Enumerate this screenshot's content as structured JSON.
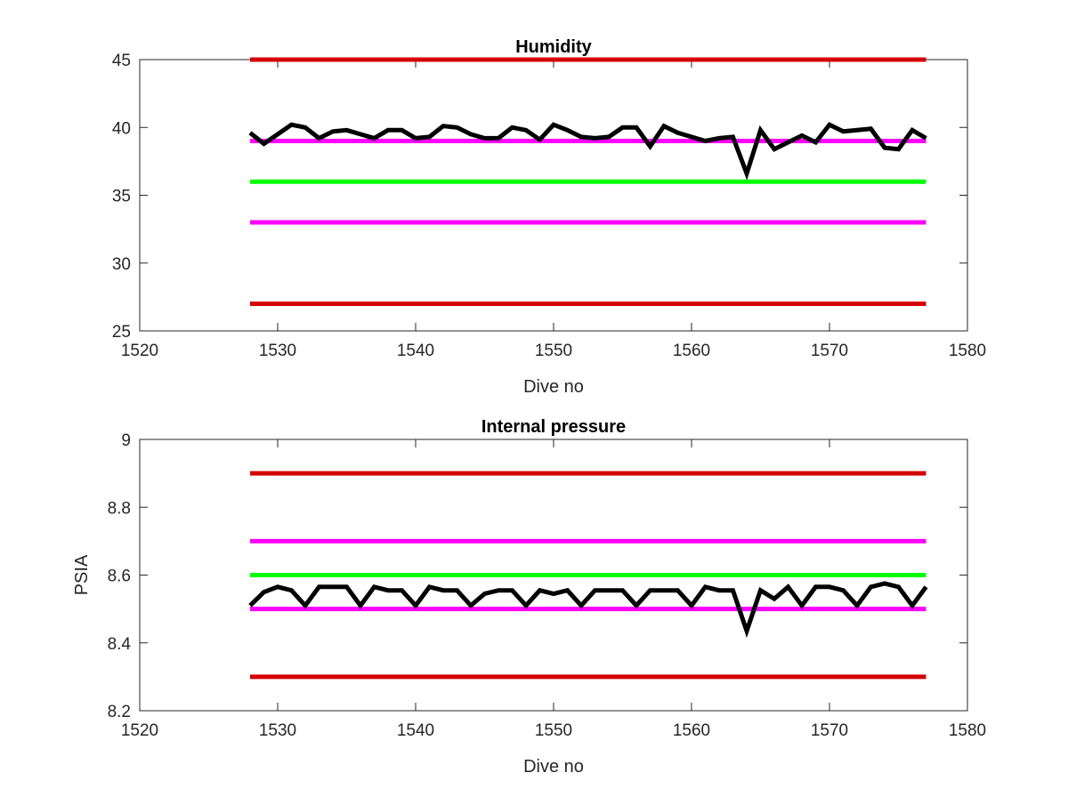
{
  "chart_data": [
    {
      "type": "line",
      "title": "Humidity",
      "xlabel": "Dive no",
      "ylabel": "",
      "xlim": [
        1520,
        1580
      ],
      "ylim": [
        25,
        45
      ],
      "xticks": [
        "1520",
        "1530",
        "1540",
        "1550",
        "1560",
        "1570",
        "1580"
      ],
      "yticks": [
        "25",
        "30",
        "35",
        "40",
        "45"
      ],
      "grid": false,
      "box": true,
      "reference_lines": [
        {
          "y": 45,
          "x": [
            1528,
            1577
          ],
          "color": "#d40000"
        },
        {
          "y": 39,
          "x": [
            1528,
            1577
          ],
          "color": "#ff00ff"
        },
        {
          "y": 36,
          "x": [
            1528,
            1577
          ],
          "color": "#00ff00"
        },
        {
          "y": 33,
          "x": [
            1528,
            1577
          ],
          "color": "#ff00ff"
        },
        {
          "y": 27,
          "x": [
            1528,
            1577
          ],
          "color": "#d40000"
        }
      ],
      "series": [
        {
          "color": "#000000",
          "x": [
            1528,
            1529,
            1530,
            1531,
            1532,
            1533,
            1534,
            1535,
            1536,
            1537,
            1538,
            1539,
            1540,
            1541,
            1542,
            1543,
            1544,
            1545,
            1546,
            1547,
            1548,
            1549,
            1550,
            1551,
            1552,
            1553,
            1554,
            1555,
            1556,
            1557,
            1558,
            1559,
            1560,
            1561,
            1562,
            1563,
            1564,
            1565,
            1566,
            1567,
            1568,
            1569,
            1570,
            1571,
            1572,
            1573,
            1574,
            1575,
            1576,
            1577
          ],
          "y": [
            39.6,
            38.8,
            39.5,
            40.2,
            40.0,
            39.2,
            39.7,
            39.8,
            39.5,
            39.2,
            39.8,
            39.8,
            39.2,
            39.3,
            40.1,
            40.0,
            39.5,
            39.2,
            39.2,
            40.0,
            39.8,
            39.1,
            40.2,
            39.8,
            39.3,
            39.2,
            39.3,
            40.0,
            40.0,
            38.6,
            40.1,
            39.6,
            39.3,
            39.0,
            39.2,
            39.3,
            36.6,
            39.8,
            38.4,
            38.9,
            39.4,
            38.9,
            40.2,
            39.7,
            39.8,
            39.9,
            38.5,
            38.4,
            39.8,
            39.2
          ]
        }
      ]
    },
    {
      "type": "line",
      "title": "Internal pressure",
      "xlabel": "Dive no",
      "ylabel": "PSIA",
      "xlim": [
        1520,
        1580
      ],
      "ylim": [
        8.2,
        9.0
      ],
      "xticks": [
        "1520",
        "1530",
        "1540",
        "1550",
        "1560",
        "1570",
        "1580"
      ],
      "yticks": [
        "8.2",
        "8.4",
        "8.6",
        "8.8",
        "9"
      ],
      "grid": false,
      "box": true,
      "reference_lines": [
        {
          "y": 8.9,
          "x": [
            1528,
            1577
          ],
          "color": "#d40000"
        },
        {
          "y": 8.7,
          "x": [
            1528,
            1577
          ],
          "color": "#ff00ff"
        },
        {
          "y": 8.6,
          "x": [
            1528,
            1577
          ],
          "color": "#00ff00"
        },
        {
          "y": 8.5,
          "x": [
            1528,
            1577
          ],
          "color": "#ff00ff"
        },
        {
          "y": 8.3,
          "x": [
            1528,
            1577
          ],
          "color": "#d40000"
        }
      ],
      "series": [
        {
          "color": "#000000",
          "x": [
            1528,
            1529,
            1530,
            1531,
            1532,
            1533,
            1534,
            1535,
            1536,
            1537,
            1538,
            1539,
            1540,
            1541,
            1542,
            1543,
            1544,
            1545,
            1546,
            1547,
            1548,
            1549,
            1550,
            1551,
            1552,
            1553,
            1554,
            1555,
            1556,
            1557,
            1558,
            1559,
            1560,
            1561,
            1562,
            1563,
            1564,
            1565,
            1566,
            1567,
            1568,
            1569,
            1570,
            1571,
            1572,
            1573,
            1574,
            1575,
            1576,
            1577
          ],
          "y": [
            8.51,
            8.55,
            8.565,
            8.555,
            8.51,
            8.565,
            8.565,
            8.565,
            8.51,
            8.565,
            8.555,
            8.555,
            8.51,
            8.565,
            8.555,
            8.555,
            8.51,
            8.545,
            8.555,
            8.555,
            8.51,
            8.555,
            8.545,
            8.555,
            8.51,
            8.555,
            8.555,
            8.555,
            8.51,
            8.555,
            8.555,
            8.555,
            8.51,
            8.565,
            8.555,
            8.555,
            8.435,
            8.555,
            8.53,
            8.565,
            8.51,
            8.565,
            8.565,
            8.555,
            8.51,
            8.565,
            8.575,
            8.565,
            8.51,
            8.565
          ]
        }
      ]
    }
  ]
}
